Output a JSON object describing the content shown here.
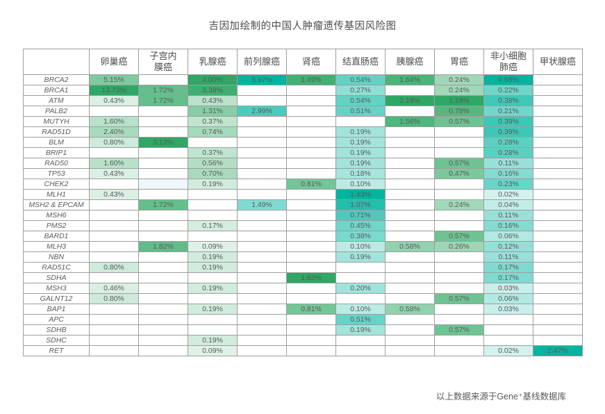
{
  "chart_data": {
    "type": "heatmap",
    "title": "吉因加绘制的中国人肿瘤遗传基因风险图",
    "source_note": "以上数据来源于Gene⁺基线数据库",
    "value_unit": "percent",
    "legend": "none",
    "palette": {
      "green": "#2ea864",
      "teal": "#00b5a0",
      "tint_blue": "#eef7fb"
    },
    "columns": [
      {
        "label": "卵巢癌",
        "hue": "green"
      },
      {
        "label": "子宫内\n膜癌",
        "hue": "green"
      },
      {
        "label": "乳腺癌",
        "hue": "green"
      },
      {
        "label": "前列腺癌",
        "hue": "teal"
      },
      {
        "label": "肾癌",
        "hue": "green"
      },
      {
        "label": "结直肠癌",
        "hue": "teal"
      },
      {
        "label": "胰腺癌",
        "hue": "green"
      },
      {
        "label": "胃癌",
        "hue": "green"
      },
      {
        "label": "非小细胞\n肺癌",
        "hue": "teal"
      },
      {
        "label": "甲状腺癌",
        "hue": "teal"
      }
    ],
    "rows": [
      {
        "gene": "BRCA2",
        "values": [
          5.15,
          null,
          4.0,
          5.97,
          1.49,
          0.54,
          1.64,
          0.24,
          0.68,
          null
        ]
      },
      {
        "gene": "BRCA1",
        "values": [
          13.73,
          1.72,
          3.39,
          null,
          null,
          0.27,
          null,
          0.24,
          0.22,
          null
        ]
      },
      {
        "gene": "ATM",
        "values": [
          0.43,
          1.72,
          0.43,
          null,
          null,
          0.54,
          2.19,
          1.18,
          0.38,
          null
        ]
      },
      {
        "gene": "PALB2",
        "values": [
          null,
          null,
          1.31,
          2.99,
          null,
          0.51,
          null,
          0.78,
          0.21,
          null
        ]
      },
      {
        "gene": "MUTYH",
        "values": [
          1.6,
          null,
          0.37,
          null,
          null,
          null,
          1.56,
          0.57,
          0.39,
          null
        ]
      },
      {
        "gene": "RAD51D",
        "values": [
          2.4,
          null,
          0.74,
          null,
          null,
          0.19,
          null,
          null,
          0.39,
          null
        ]
      },
      {
        "gene": "BLM",
        "values": [
          0.8,
          3.13,
          null,
          null,
          null,
          0.19,
          null,
          null,
          0.28,
          null
        ]
      },
      {
        "gene": "BRIP1",
        "values": [
          null,
          null,
          0.37,
          null,
          null,
          0.19,
          null,
          null,
          0.28,
          null
        ]
      },
      {
        "gene": "RAD50",
        "values": [
          1.6,
          null,
          0.56,
          null,
          null,
          0.19,
          null,
          0.57,
          0.11,
          null
        ]
      },
      {
        "gene": "TP53",
        "values": [
          0.43,
          null,
          0.7,
          null,
          null,
          0.18,
          null,
          0.47,
          0.16,
          null
        ]
      },
      {
        "gene": "CHEK2",
        "values": [
          null,
          null,
          0.19,
          null,
          0.81,
          0.1,
          null,
          null,
          0.23,
          null
        ],
        "tint_cols": [
          1
        ]
      },
      {
        "gene": "MLH1",
        "values": [
          0.43,
          null,
          null,
          null,
          null,
          1.43,
          null,
          null,
          0.02,
          null
        ]
      },
      {
        "gene": "MSH2 & EPCAM",
        "values": [
          null,
          1.72,
          null,
          1.49,
          null,
          1.07,
          null,
          0.24,
          0.04,
          null
        ]
      },
      {
        "gene": "MSH6",
        "values": [
          null,
          null,
          null,
          null,
          null,
          0.71,
          null,
          null,
          0.11,
          null
        ]
      },
      {
        "gene": "PMS2",
        "values": [
          null,
          null,
          0.17,
          null,
          null,
          0.45,
          null,
          null,
          0.16,
          null
        ]
      },
      {
        "gene": "BARD1",
        "values": [
          null,
          null,
          null,
          null,
          null,
          0.38,
          null,
          0.57,
          0.06,
          null
        ]
      },
      {
        "gene": "MLH3",
        "values": [
          null,
          1.82,
          0.09,
          null,
          null,
          0.1,
          0.58,
          0.26,
          0.12,
          null
        ]
      },
      {
        "gene": "NBN",
        "values": [
          null,
          null,
          0.19,
          null,
          null,
          0.19,
          null,
          null,
          0.11,
          null
        ]
      },
      {
        "gene": "RAD51C",
        "values": [
          0.8,
          null,
          0.19,
          null,
          null,
          null,
          null,
          null,
          0.17,
          null
        ]
      },
      {
        "gene": "SDHA",
        "values": [
          null,
          null,
          null,
          null,
          1.82,
          null,
          null,
          null,
          0.17,
          null
        ]
      },
      {
        "gene": "MSH3",
        "values": [
          0.46,
          null,
          0.19,
          null,
          null,
          0.2,
          null,
          null,
          0.03,
          null
        ]
      },
      {
        "gene": "GALNT12",
        "values": [
          0.8,
          null,
          null,
          null,
          null,
          null,
          null,
          0.57,
          0.06,
          null
        ]
      },
      {
        "gene": "BAP1",
        "values": [
          null,
          null,
          0.19,
          null,
          0.81,
          0.1,
          0.58,
          null,
          0.03,
          null
        ]
      },
      {
        "gene": "APC",
        "values": [
          null,
          null,
          null,
          null,
          null,
          0.51,
          null,
          null,
          null,
          null
        ]
      },
      {
        "gene": "SDHB",
        "values": [
          null,
          null,
          null,
          null,
          null,
          0.19,
          null,
          0.57,
          null,
          null
        ]
      },
      {
        "gene": "SDHC",
        "values": [
          null,
          null,
          0.19,
          null,
          null,
          null,
          null,
          null,
          null,
          null
        ]
      },
      {
        "gene": "RET",
        "values": [
          null,
          null,
          0.09,
          null,
          null,
          null,
          null,
          null,
          0.02,
          2.47
        ]
      }
    ]
  }
}
